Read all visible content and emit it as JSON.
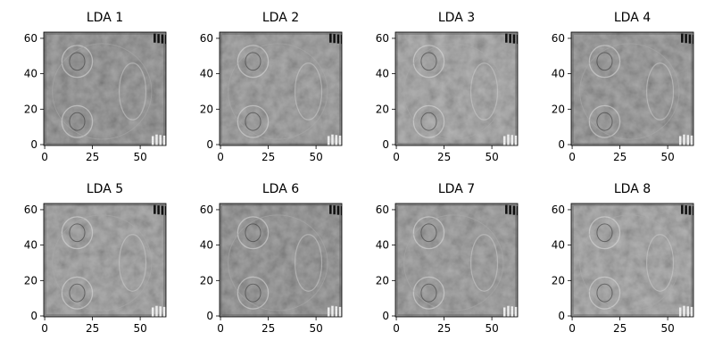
{
  "chart_data": [
    {
      "type": "heatmap",
      "title": "LDA 1",
      "xticks": [
        0,
        25,
        50
      ],
      "yticks": [
        0,
        20,
        40,
        60
      ],
      "xlim": [
        -0.5,
        63.5
      ],
      "ylim": [
        63.5,
        -0.5
      ],
      "colormap": "gray",
      "grid": false
    },
    {
      "type": "heatmap",
      "title": "LDA 2",
      "xticks": [
        0,
        25,
        50
      ],
      "yticks": [
        0,
        20,
        40,
        60
      ],
      "xlim": [
        -0.5,
        63.5
      ],
      "ylim": [
        63.5,
        -0.5
      ],
      "colormap": "gray",
      "grid": false
    },
    {
      "type": "heatmap",
      "title": "LDA 3",
      "xticks": [
        0,
        25,
        50
      ],
      "yticks": [
        0,
        20,
        40,
        60
      ],
      "xlim": [
        -0.5,
        63.5
      ],
      "ylim": [
        63.5,
        -0.5
      ],
      "colormap": "gray",
      "grid": false
    },
    {
      "type": "heatmap",
      "title": "LDA 4",
      "xticks": [
        0,
        25,
        50
      ],
      "yticks": [
        0,
        20,
        40,
        60
      ],
      "xlim": [
        -0.5,
        63.5
      ],
      "ylim": [
        63.5,
        -0.5
      ],
      "colormap": "gray",
      "grid": false
    },
    {
      "type": "heatmap",
      "title": "LDA 5",
      "xticks": [
        0,
        25,
        50
      ],
      "yticks": [
        0,
        20,
        40,
        60
      ],
      "xlim": [
        -0.5,
        63.5
      ],
      "ylim": [
        63.5,
        -0.5
      ],
      "colormap": "gray",
      "grid": false
    },
    {
      "type": "heatmap",
      "title": "LDA 6",
      "xticks": [
        0,
        25,
        50
      ],
      "yticks": [
        0,
        20,
        40,
        60
      ],
      "xlim": [
        -0.5,
        63.5
      ],
      "ylim": [
        63.5,
        -0.5
      ],
      "colormap": "gray",
      "grid": false
    },
    {
      "type": "heatmap",
      "title": "LDA 7",
      "xticks": [
        0,
        25,
        50
      ],
      "yticks": [
        0,
        20,
        40,
        60
      ],
      "xlim": [
        -0.5,
        63.5
      ],
      "ylim": [
        63.5,
        -0.5
      ],
      "colormap": "gray",
      "grid": false
    },
    {
      "type": "heatmap",
      "title": "LDA 8",
      "xticks": [
        0,
        25,
        50
      ],
      "yticks": [
        0,
        20,
        40,
        60
      ],
      "xlim": [
        -0.5,
        63.5
      ],
      "ylim": [
        63.5,
        -0.5
      ],
      "colormap": "gray",
      "grid": false
    }
  ]
}
